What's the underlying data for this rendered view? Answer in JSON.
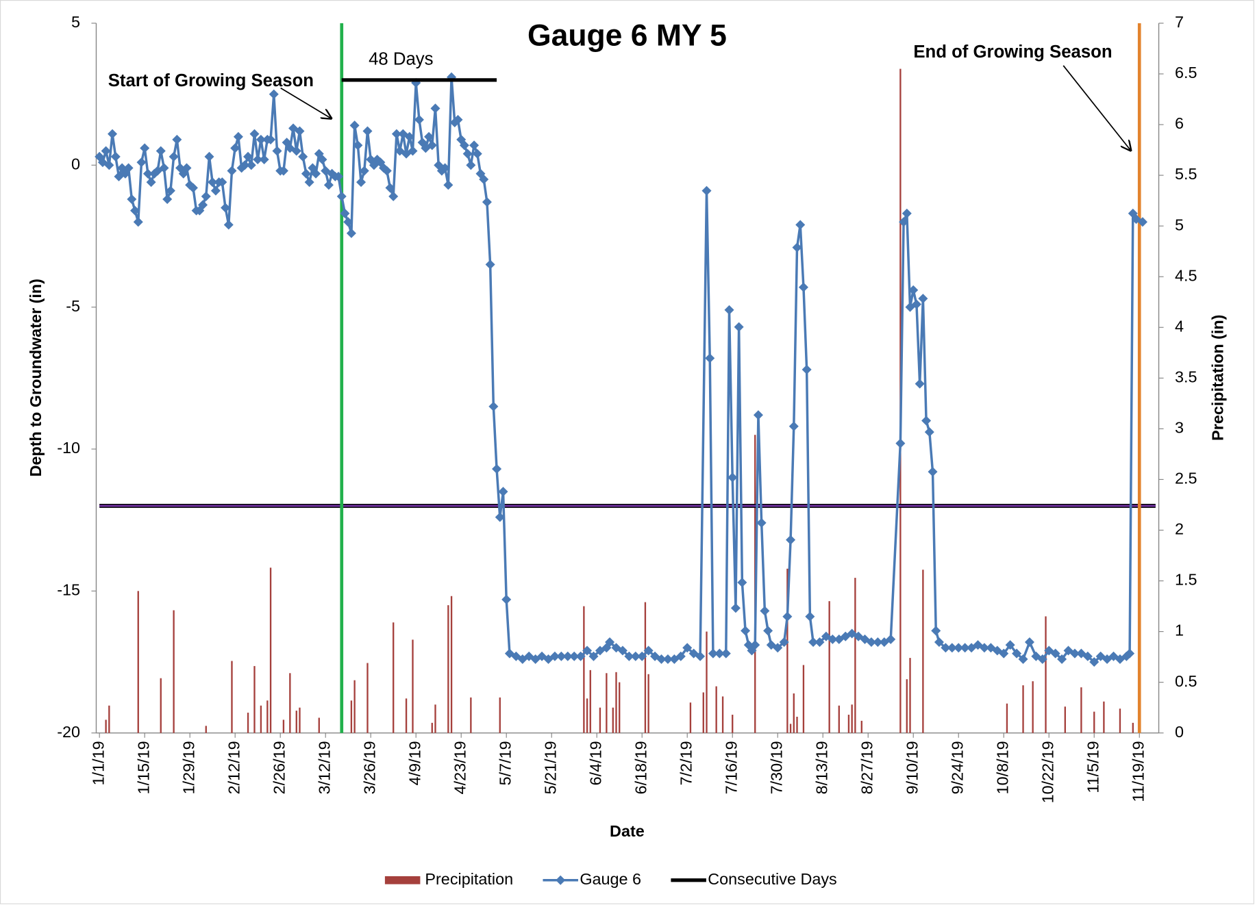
{
  "chart_data": {
    "type": "combo",
    "title": "Gauge 6 MY 5",
    "xlabel": "Date",
    "ylabel": "Depth to Groundwater (in)",
    "y2label": "Precipitation (in)",
    "xlim": [
      "12/31/18",
      "11/25/19"
    ],
    "xticks": [
      "1/1/19",
      "1/15/19",
      "1/29/19",
      "2/12/19",
      "2/26/19",
      "3/12/19",
      "3/26/19",
      "4/9/19",
      "4/23/19",
      "5/7/19",
      "5/21/19",
      "6/4/19",
      "6/18/19",
      "7/2/19",
      "7/16/19",
      "7/30/19",
      "8/13/19",
      "8/27/19",
      "9/10/19",
      "9/24/19",
      "10/8/19",
      "10/22/19",
      "11/5/19",
      "11/19/19"
    ],
    "ylim": [
      -20,
      5
    ],
    "yticks": [
      -20,
      -15,
      -10,
      -5,
      0,
      5
    ],
    "y2lim": [
      0,
      7
    ],
    "y2ticks": [
      0,
      0.5,
      1,
      1.5,
      2,
      2.5,
      3,
      3.5,
      4,
      4.5,
      5,
      5.5,
      6,
      6.5,
      7
    ],
    "legend": "bottom",
    "grid": false,
    "reference_lines": [
      {
        "value": -12,
        "color": "#7030a0"
      }
    ],
    "vertical_lines": [
      {
        "x": "3/17/19",
        "color": "#22b14c"
      },
      {
        "x": "11/19/19",
        "color": "#e3832d"
      }
    ],
    "annotations": [
      "Start of Growing Season",
      "48 Days",
      "End of Growing Season"
    ],
    "series": [
      {
        "name": "Precipitation",
        "type": "bar",
        "axis": "y2",
        "color": "#a5403c",
        "x": [
          "1/3/19",
          "1/4/19",
          "1/13/19",
          "1/20/19",
          "1/24/19",
          "2/3/19",
          "2/11/19",
          "2/16/19",
          "2/18/19",
          "2/20/19",
          "2/22/19",
          "2/23/19",
          "2/27/19",
          "3/1/19",
          "3/3/19",
          "3/4/19",
          "3/10/19",
          "3/20/19",
          "3/21/19",
          "3/25/19",
          "4/2/19",
          "4/6/19",
          "4/8/19",
          "4/14/19",
          "4/15/19",
          "4/19/19",
          "4/20/19",
          "4/26/19",
          "5/5/19",
          "5/31/19",
          "6/1/19",
          "6/2/19",
          "6/5/19",
          "6/7/19",
          "6/9/19",
          "6/10/19",
          "6/11/19",
          "6/19/19",
          "6/20/19",
          "7/3/19",
          "7/7/19",
          "7/8/19",
          "7/11/19",
          "7/13/19",
          "7/16/19",
          "7/23/19",
          "8/2/19",
          "8/3/19",
          "8/4/19",
          "8/5/19",
          "8/7/19",
          "8/15/19",
          "8/18/19",
          "8/21/19",
          "8/22/19",
          "8/23/19",
          "8/25/19",
          "9/6/19",
          "9/8/19",
          "9/9/19",
          "9/13/19",
          "10/9/19",
          "10/14/19",
          "10/17/19",
          "10/21/19",
          "10/27/19",
          "11/1/19",
          "11/5/19",
          "11/8/19",
          "11/13/19",
          "11/17/19"
        ],
        "values": [
          0.13,
          0.27,
          1.4,
          0.54,
          1.21,
          0.07,
          0.71,
          0.2,
          0.66,
          0.27,
          0.32,
          1.63,
          0.13,
          0.59,
          0.22,
          0.25,
          0.15,
          0.32,
          0.52,
          0.69,
          1.09,
          0.34,
          0.92,
          0.1,
          0.28,
          1.26,
          1.35,
          0.35,
          0.35,
          1.25,
          0.34,
          0.62,
          0.25,
          0.59,
          0.25,
          0.6,
          0.5,
          1.29,
          0.58,
          0.3,
          0.4,
          1.0,
          0.46,
          0.36,
          0.18,
          2.94,
          1.62,
          0.09,
          0.39,
          0.16,
          0.67,
          1.3,
          0.27,
          0.18,
          0.28,
          1.53,
          0.12,
          6.55,
          0.53,
          0.74,
          1.61,
          0.29,
          0.47,
          0.51,
          1.15,
          0.26,
          0.45,
          0.21,
          0.31,
          0.24,
          0.1
        ]
      },
      {
        "name": "Gauge 6",
        "type": "line",
        "marker": "diamond",
        "color": "#4a7ab5",
        "x": [
          "1/1/19",
          "1/2/19",
          "1/3/19",
          "1/4/19",
          "1/5/19",
          "1/6/19",
          "1/7/19",
          "1/8/19",
          "1/9/19",
          "1/10/19",
          "1/11/19",
          "1/12/19",
          "1/13/19",
          "1/14/19",
          "1/15/19",
          "1/16/19",
          "1/17/19",
          "1/18/19",
          "1/19/19",
          "1/20/19",
          "1/21/19",
          "1/22/19",
          "1/23/19",
          "1/24/19",
          "1/25/19",
          "1/26/19",
          "1/27/19",
          "1/28/19",
          "1/29/19",
          "1/30/19",
          "1/31/19",
          "2/1/19",
          "2/2/19",
          "2/3/19",
          "2/4/19",
          "2/5/19",
          "2/6/19",
          "2/7/19",
          "2/8/19",
          "2/9/19",
          "2/10/19",
          "2/11/19",
          "2/12/19",
          "2/13/19",
          "2/14/19",
          "2/15/19",
          "2/16/19",
          "2/17/19",
          "2/18/19",
          "2/19/19",
          "2/20/19",
          "2/21/19",
          "2/22/19",
          "2/23/19",
          "2/24/19",
          "2/25/19",
          "2/26/19",
          "2/27/19",
          "2/28/19",
          "3/1/19",
          "3/2/19",
          "3/3/19",
          "3/4/19",
          "3/5/19",
          "3/6/19",
          "3/7/19",
          "3/8/19",
          "3/9/19",
          "3/10/19",
          "3/11/19",
          "3/12/19",
          "3/13/19",
          "3/14/19",
          "3/15/19",
          "3/16/19",
          "3/17/19",
          "3/18/19",
          "3/19/19",
          "3/20/19",
          "3/21/19",
          "3/22/19",
          "3/23/19",
          "3/24/19",
          "3/25/19",
          "3/26/19",
          "3/27/19",
          "3/28/19",
          "3/29/19",
          "3/30/19",
          "3/31/19",
          "4/1/19",
          "4/2/19",
          "4/3/19",
          "4/4/19",
          "4/5/19",
          "4/6/19",
          "4/7/19",
          "4/8/19",
          "4/9/19",
          "4/10/19",
          "4/11/19",
          "4/12/19",
          "4/13/19",
          "4/14/19",
          "4/15/19",
          "4/16/19",
          "4/17/19",
          "4/18/19",
          "4/19/19",
          "4/20/19",
          "4/21/19",
          "4/22/19",
          "4/23/19",
          "4/24/19",
          "4/25/19",
          "4/26/19",
          "4/27/19",
          "4/28/19",
          "4/29/19",
          "4/30/19",
          "5/1/19",
          "5/2/19",
          "5/3/19",
          "5/4/19",
          "5/5/19",
          "5/6/19",
          "5/7/19",
          "5/8/19",
          "5/10/19",
          "5/12/19",
          "5/14/19",
          "5/16/19",
          "5/18/19",
          "5/20/19",
          "5/22/19",
          "5/24/19",
          "5/26/19",
          "5/28/19",
          "5/30/19",
          "6/1/19",
          "6/3/19",
          "6/5/19",
          "6/7/19",
          "6/8/19",
          "6/10/19",
          "6/12/19",
          "6/14/19",
          "6/16/19",
          "6/18/19",
          "6/20/19",
          "6/22/19",
          "6/24/19",
          "6/26/19",
          "6/28/19",
          "6/30/19",
          "7/2/19",
          "7/4/19",
          "7/6/19",
          "7/8/19",
          "7/9/19",
          "7/10/19",
          "7/12/19",
          "7/14/19",
          "7/15/19",
          "7/16/19",
          "7/17/19",
          "7/18/19",
          "7/19/19",
          "7/20/19",
          "7/21/19",
          "7/22/19",
          "7/23/19",
          "7/24/19",
          "7/25/19",
          "7/26/19",
          "7/27/19",
          "7/28/19",
          "7/30/19",
          "8/1/19",
          "8/2/19",
          "8/3/19",
          "8/4/19",
          "8/5/19",
          "8/6/19",
          "8/7/19",
          "8/8/19",
          "8/9/19",
          "8/10/19",
          "8/12/19",
          "8/14/19",
          "8/16/19",
          "8/18/19",
          "8/20/19",
          "8/22/19",
          "8/24/19",
          "8/26/19",
          "8/28/19",
          "8/30/19",
          "9/1/19",
          "9/3/19",
          "9/6/19",
          "9/7/19",
          "9/8/19",
          "9/9/19",
          "9/10/19",
          "9/11/19",
          "9/12/19",
          "9/13/19",
          "9/14/19",
          "9/15/19",
          "9/16/19",
          "9/17/19",
          "9/18/19",
          "9/20/19",
          "9/22/19",
          "9/24/19",
          "9/26/19",
          "9/28/19",
          "9/30/19",
          "10/2/19",
          "10/4/19",
          "10/6/19",
          "10/8/19",
          "10/10/19",
          "10/12/19",
          "10/14/19",
          "10/16/19",
          "10/18/19",
          "10/20/19",
          "10/22/19",
          "10/24/19",
          "10/26/19",
          "10/28/19",
          "10/30/19",
          "11/1/19",
          "11/3/19",
          "11/5/19",
          "11/7/19",
          "11/9/19",
          "11/11/19",
          "11/13/19",
          "11/15/19",
          "11/16/19",
          "11/17/19",
          "11/18/19",
          "11/20/19"
        ],
        "values": [
          0.3,
          0.1,
          0.5,
          0.0,
          1.1,
          0.3,
          -0.4,
          -0.1,
          -0.3,
          -0.1,
          -1.2,
          -1.6,
          -2.0,
          0.1,
          0.6,
          -0.3,
          -0.6,
          -0.3,
          -0.2,
          0.5,
          -0.1,
          -1.2,
          -0.9,
          0.3,
          0.9,
          -0.1,
          -0.3,
          -0.1,
          -0.7,
          -0.8,
          -1.6,
          -1.6,
          -1.4,
          -1.1,
          0.3,
          -0.6,
          -0.9,
          -0.6,
          -0.6,
          -1.5,
          -2.1,
          -0.2,
          0.6,
          1.0,
          -0.1,
          0.0,
          0.3,
          0.0,
          1.1,
          0.2,
          0.9,
          0.2,
          0.9,
          0.9,
          2.5,
          0.5,
          -0.2,
          -0.2,
          0.8,
          0.6,
          1.3,
          0.5,
          1.2,
          0.3,
          -0.3,
          -0.6,
          -0.1,
          -0.3,
          0.4,
          0.2,
          -0.2,
          -0.7,
          -0.3,
          -0.4,
          -0.4,
          -1.1,
          -1.7,
          -2.0,
          -2.4,
          1.4,
          0.7,
          -0.6,
          -0.2,
          1.2,
          0.2,
          0.0,
          0.2,
          0.1,
          -0.1,
          -0.2,
          -0.8,
          -1.1,
          1.1,
          0.5,
          1.1,
          0.4,
          1.0,
          0.5,
          2.9,
          1.6,
          0.8,
          0.6,
          1.0,
          0.7,
          2.0,
          0.0,
          -0.2,
          -0.1,
          -0.7,
          3.1,
          1.5,
          1.6,
          0.9,
          0.7,
          0.4,
          0.0,
          0.7,
          0.4,
          -0.3,
          -0.5,
          -1.3,
          -3.5,
          -8.5,
          -10.7,
          -12.4,
          -11.5,
          -15.3,
          -17.2,
          -17.3,
          -17.4,
          -17.3,
          -17.4,
          -17.3,
          -17.4,
          -17.3,
          -17.3,
          -17.3,
          -17.3,
          -17.3,
          -17.1,
          -17.3,
          -17.1,
          -17.0,
          -16.8,
          -17.0,
          -17.1,
          -17.3,
          -17.3,
          -17.3,
          -17.1,
          -17.3,
          -17.4,
          -17.4,
          -17.4,
          -17.3,
          -17.0,
          -17.2,
          -17.3,
          -0.9,
          -6.8,
          -17.2,
          -17.2,
          -17.2,
          -5.1,
          -11.0,
          -15.6,
          -5.7,
          -14.7,
          -16.4,
          -16.9,
          -17.1,
          -16.9,
          -8.8,
          -12.6,
          -15.7,
          -16.4,
          -16.9,
          -17.0,
          -16.8,
          -15.9,
          -13.2,
          -9.2,
          -2.9,
          -2.1,
          -4.3,
          -7.2,
          -15.9,
          -16.8,
          -16.8,
          -16.6,
          -16.7,
          -16.7,
          -16.6,
          -16.5,
          -16.6,
          -16.7,
          -16.8,
          -16.8,
          -16.8,
          -16.7,
          -9.8,
          -2.0,
          -1.7,
          -5.0,
          -4.4,
          -4.9,
          -7.7,
          -4.7,
          -9.0,
          -9.4,
          -10.8,
          -16.4,
          -16.8,
          -17.0,
          -17.0,
          -17.0,
          -17.0,
          -17.0,
          -16.9,
          -17.0,
          -17.0,
          -17.1,
          -17.2,
          -16.9,
          -17.2,
          -17.4,
          -16.8,
          -17.3,
          -17.4,
          -17.1,
          -17.2,
          -17.4,
          -17.1,
          -17.2,
          -17.2,
          -17.3,
          -17.5,
          -17.3,
          -17.4,
          -17.3,
          -17.4,
          -17.3,
          -17.2,
          -1.7,
          -1.9,
          -2.0
        ]
      },
      {
        "name": "Consecutive Days",
        "type": "line",
        "color": "#000000",
        "x": [
          "3/17/19",
          "5/4/19"
        ],
        "values": [
          3,
          3
        ]
      }
    ]
  }
}
